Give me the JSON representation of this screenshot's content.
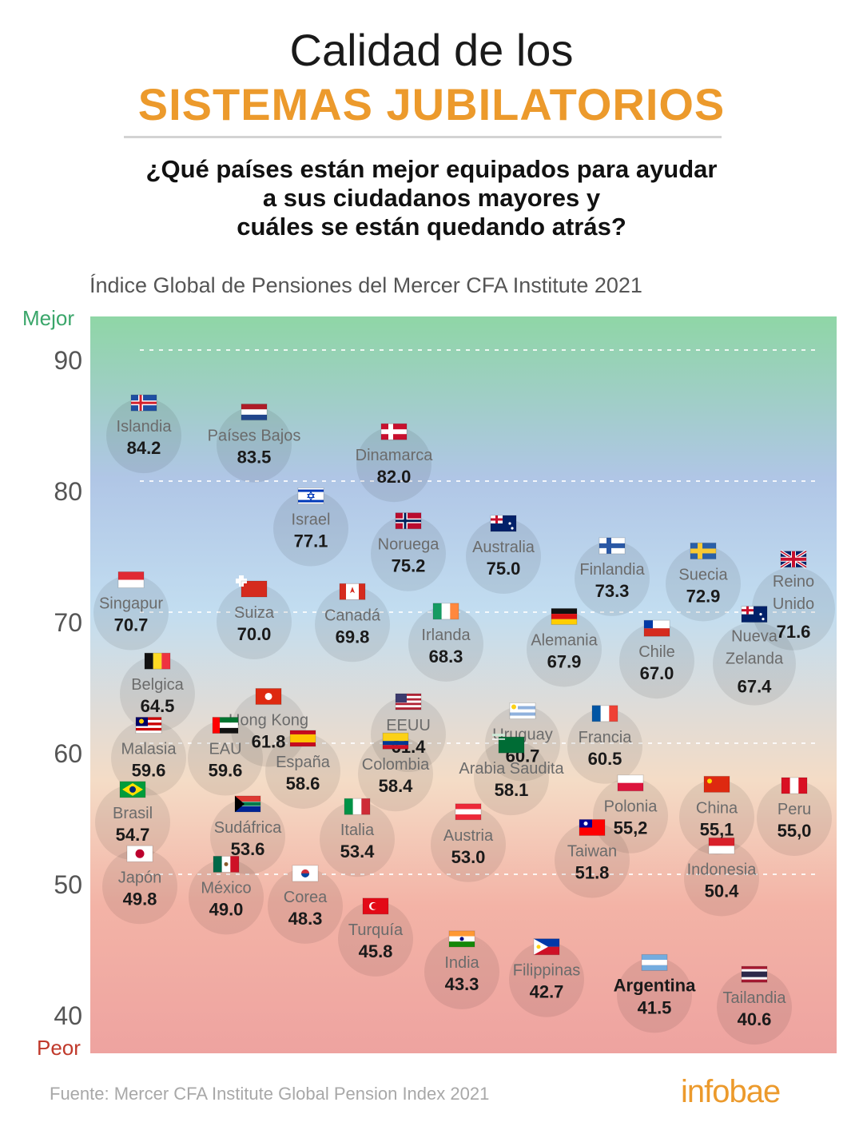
{
  "header": {
    "title_line1": "Calidad de los",
    "title_line2": "SISTEMAS JUBILATORIOS",
    "question": [
      "¿Qué países están mejor equipados para ayudar",
      "a sus ciudadanos mayores y",
      "cuáles se están quedando atrás?"
    ]
  },
  "chart_data": {
    "type": "scatter",
    "title": "Índice Global de Pensiones del Mercer CFA Institute 2021",
    "y_top_label": "Mejor",
    "y_bottom_label": "Peor",
    "yticks": [
      "90",
      "80",
      "70",
      "60",
      "50",
      "40"
    ],
    "ylim": [
      37,
      94
    ],
    "gradient": [
      "#8fd6a6",
      "#b0c6e6",
      "#c2ddf0",
      "#f4dcc6",
      "#f3b3a6",
      "#eea3a0"
    ],
    "points": [
      {
        "name": "Islandia",
        "value": "84.2",
        "flag": "Iceland"
      },
      {
        "name": "Países Bajos",
        "value": "83.5",
        "flag": "Netherlands"
      },
      {
        "name": "Dinamarca",
        "value": "82.0",
        "flag": "Denmark"
      },
      {
        "name": "Israel",
        "value": "77.1",
        "flag": "Israel"
      },
      {
        "name": "Noruega",
        "value": "75.2",
        "flag": "Norway"
      },
      {
        "name": "Australia",
        "value": "75.0",
        "flag": "Australia"
      },
      {
        "name": "Finlandia",
        "value": "73.3",
        "flag": "Finland"
      },
      {
        "name": "Suecia",
        "value": "72.9",
        "flag": "Sweden"
      },
      {
        "name": "Reino Unido",
        "value": "71.6",
        "flag": "United Kingdom"
      },
      {
        "name": "Singapur",
        "value": "70.7",
        "flag": "Singapore"
      },
      {
        "name": "Suiza",
        "value": "70.0",
        "flag": "Switzerland"
      },
      {
        "name": "Canadá",
        "value": "69.8",
        "flag": "Canada"
      },
      {
        "name": "Irlanda",
        "value": "68.3",
        "flag": "Ireland"
      },
      {
        "name": "Alemania",
        "value": "67.9",
        "flag": "Germany"
      },
      {
        "name": "Chile",
        "value": "67.0",
        "flag": "Chile"
      },
      {
        "name": "Nueva Zelanda",
        "value": "67.4",
        "flag": "New Zealand"
      },
      {
        "name": "Belgica",
        "value": "64.5",
        "flag": "Belgium"
      },
      {
        "name": "Hong Kong",
        "value": "61.8",
        "flag": "Hong Kong"
      },
      {
        "name": "EEUU",
        "value": "61.4",
        "flag": "United States"
      },
      {
        "name": "Uruguay",
        "value": "60.7",
        "flag": "Uruguay"
      },
      {
        "name": "Francia",
        "value": "60.5",
        "flag": "France"
      },
      {
        "name": "Malasia",
        "value": "59.6",
        "flag": "Malaysia"
      },
      {
        "name": "EAU",
        "value": "59.6",
        "flag": "United Arab Emirates"
      },
      {
        "name": "España",
        "value": "58.6",
        "flag": "Spain"
      },
      {
        "name": "Colombia",
        "value": "58.4",
        "flag": "Colombia"
      },
      {
        "name": "Arabia Saudita",
        "value": "58.1",
        "flag": "Saudi Arabia"
      },
      {
        "name": "Polonia",
        "value": "55,2",
        "flag": "Poland"
      },
      {
        "name": "China",
        "value": "55,1",
        "flag": "China"
      },
      {
        "name": "Peru",
        "value": "55,0",
        "flag": "Peru"
      },
      {
        "name": "Brasil",
        "value": "54.7",
        "flag": "Brazil"
      },
      {
        "name": "Sudáfrica",
        "value": "53.6",
        "flag": "South Africa"
      },
      {
        "name": "Italia",
        "value": "53.4",
        "flag": "Italy"
      },
      {
        "name": "Austria",
        "value": "53.0",
        "flag": "Austria"
      },
      {
        "name": "Taiwan",
        "value": "51.8",
        "flag": "Taiwan"
      },
      {
        "name": "Indonesia",
        "value": "50.4",
        "flag": "Indonesia"
      },
      {
        "name": "Japón",
        "value": "49.8",
        "flag": "Japan"
      },
      {
        "name": "México",
        "value": "49.0",
        "flag": "Mexico"
      },
      {
        "name": "Corea",
        "value": "48.3",
        "flag": "South Korea"
      },
      {
        "name": "Turquía",
        "value": "45.8",
        "flag": "Turkey"
      },
      {
        "name": "India",
        "value": "43.3",
        "flag": "India"
      },
      {
        "name": "Filippinas",
        "value": "42.7",
        "flag": "Philippines"
      },
      {
        "name": "Argentina",
        "value": "41.5",
        "flag": "Argentina",
        "highlight": true
      },
      {
        "name": "Tailandia",
        "value": "40.6",
        "flag": "Thailand"
      }
    ]
  },
  "footer": {
    "source": "Fuente: Mercer CFA Institute Global Pension Index 2021",
    "logo": "infobae"
  },
  "colors": {
    "accent": "#ec9a2c",
    "best": "#3aa66a",
    "worst": "#c0392b"
  }
}
